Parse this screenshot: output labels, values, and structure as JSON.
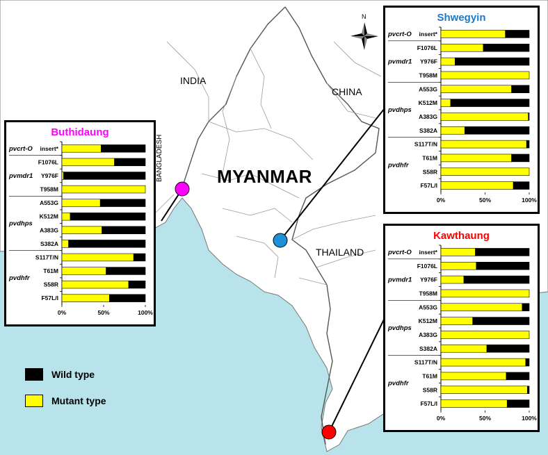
{
  "map": {
    "country_label": "MYANMAR",
    "neighbor_labels": {
      "india": "INDIA",
      "china": "CHINA",
      "thailand": "THAILAND",
      "bangladesh": "BANGLADESH"
    },
    "compass_letter": "N",
    "colors": {
      "sea": "#b9e3ea",
      "land": "#ffffff",
      "border": "#888888",
      "wild": "#000000",
      "mutant": "#ffff00"
    }
  },
  "legend": {
    "wild_label": "Wild type",
    "mutant_label": "Mutant type"
  },
  "sites": [
    {
      "name": "Buthidaung",
      "marker_color": "#ff00ff",
      "title_color": "#ff00ff"
    },
    {
      "name": "Shwegyin",
      "marker_color": "#1e90d8",
      "title_color": "#1e78c8"
    },
    {
      "name": "Kawthaung",
      "marker_color": "#ff0000",
      "title_color": "#ff0000"
    }
  ],
  "chart_data": [
    {
      "type": "bar",
      "title": "Buthidaung",
      "genes": [
        "pvcrt-O",
        "pvmdr1",
        "pvdhps",
        "pvdhfr"
      ],
      "categories": [
        "insert*",
        "F1076L",
        "Y976F",
        "T958M",
        "A553G",
        "K512M",
        "A383G",
        "S382A",
        "S117T/N",
        "T61M",
        "S58R",
        "F57L/I"
      ],
      "gene_of_category": [
        "pvcrt-O",
        "pvmdr1",
        "pvmdr1",
        "pvmdr1",
        "pvdhps",
        "pvdhps",
        "pvdhps",
        "pvdhps",
        "pvdhfr",
        "pvdhfr",
        "pvdhfr",
        "pvdhfr"
      ],
      "series": [
        {
          "name": "Mutant type",
          "values": [
            47,
            63,
            2,
            100,
            46,
            10,
            48,
            8,
            86,
            53,
            80,
            57
          ]
        },
        {
          "name": "Wild type",
          "values": [
            53,
            37,
            98,
            0,
            54,
            90,
            52,
            92,
            14,
            47,
            20,
            43
          ]
        }
      ],
      "xticks": [
        "0%",
        "50%",
        "100%"
      ],
      "xlim": [
        0,
        100
      ]
    },
    {
      "type": "bar",
      "title": "Shwegyin",
      "genes": [
        "pvcrt-O",
        "pvmdr1",
        "pvdhps",
        "pvdhfr"
      ],
      "categories": [
        "insert*",
        "F1076L",
        "Y976F",
        "T958M",
        "A553G",
        "K512M",
        "A383G",
        "S382A",
        "S117T/N",
        "T61M",
        "S58R",
        "F57L/I"
      ],
      "gene_of_category": [
        "pvcrt-O",
        "pvmdr1",
        "pvmdr1",
        "pvmdr1",
        "pvdhps",
        "pvdhps",
        "pvdhps",
        "pvdhps",
        "pvdhfr",
        "pvdhfr",
        "pvdhfr",
        "pvdhfr"
      ],
      "series": [
        {
          "name": "Mutant type",
          "values": [
            73,
            48,
            16,
            100,
            80,
            11,
            99,
            27,
            97,
            80,
            100,
            82
          ]
        },
        {
          "name": "Wild type",
          "values": [
            27,
            52,
            84,
            0,
            20,
            89,
            1,
            73,
            3,
            20,
            0,
            18
          ]
        }
      ],
      "xticks": [
        "0%",
        "50%",
        "100%"
      ],
      "xlim": [
        0,
        100
      ]
    },
    {
      "type": "bar",
      "title": "Kawthaung",
      "genes": [
        "pvcrt-O",
        "pvmdr1",
        "pvdhps",
        "pvdhfr"
      ],
      "categories": [
        "insert*",
        "F1076L",
        "Y976F",
        "T958M",
        "A553G",
        "K512M",
        "A383G",
        "S382A",
        "S117T/N",
        "T61M",
        "S58R",
        "F57L/I"
      ],
      "gene_of_category": [
        "pvcrt-O",
        "pvmdr1",
        "pvmdr1",
        "pvmdr1",
        "pvdhps",
        "pvdhps",
        "pvdhps",
        "pvdhps",
        "pvdhfr",
        "pvdhfr",
        "pvdhfr",
        "pvdhfr"
      ],
      "series": [
        {
          "name": "Mutant type",
          "values": [
            39,
            40,
            26,
            100,
            92,
            36,
            100,
            52,
            96,
            74,
            98,
            75
          ]
        },
        {
          "name": "Wild type",
          "values": [
            61,
            60,
            74,
            0,
            8,
            64,
            0,
            48,
            4,
            26,
            2,
            25
          ]
        }
      ],
      "xticks": [
        "0%",
        "50%",
        "100%"
      ],
      "xlim": [
        0,
        100
      ]
    }
  ]
}
